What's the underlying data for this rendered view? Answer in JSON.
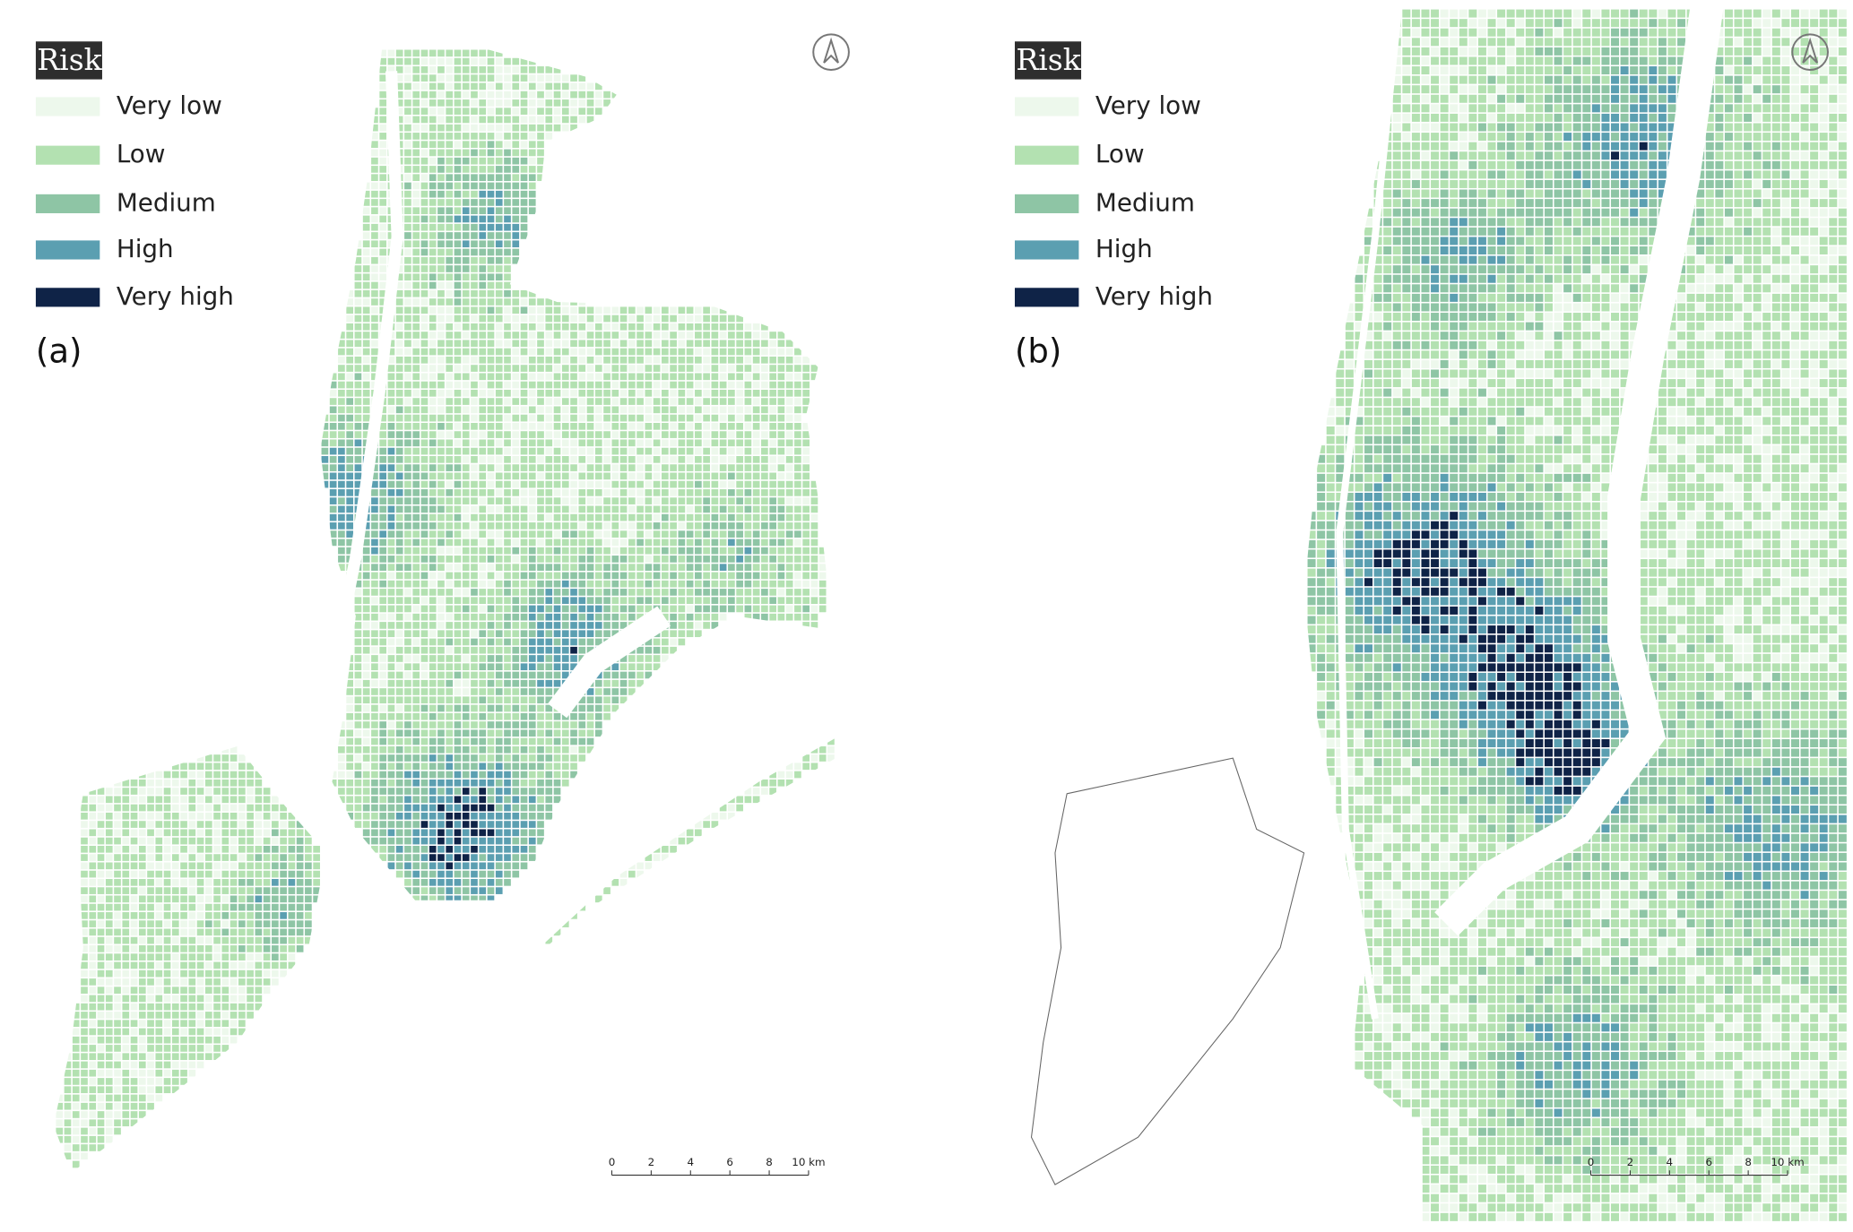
{
  "panels": [
    {
      "label": "(a)",
      "legend": {
        "title": "Risk",
        "items": [
          {
            "label": "Very low",
            "color": "#edf8ec"
          },
          {
            "label": "Low",
            "color": "#b3e1b1"
          },
          {
            "label": "Medium",
            "color": "#8ec5a5"
          },
          {
            "label": "High",
            "color": "#5b9fb1"
          },
          {
            "label": "Very high",
            "color": "#0f2347"
          }
        ]
      },
      "scale_bar": {
        "ticks": [
          "0",
          "2",
          "4",
          "6",
          "8",
          "10 km"
        ]
      }
    },
    {
      "label": "(b)",
      "legend": {
        "title": "Risk",
        "items": [
          {
            "label": "Very low",
            "color": "#edf8ec"
          },
          {
            "label": "Low",
            "color": "#b3e1b1"
          },
          {
            "label": "Medium",
            "color": "#8ec5a5"
          },
          {
            "label": "High",
            "color": "#5b9fb1"
          },
          {
            "label": "Very high",
            "color": "#0f2347"
          }
        ]
      },
      "scale_bar": {
        "ticks": [
          "0",
          "2",
          "4",
          "6",
          "8",
          "10 km"
        ]
      }
    }
  ]
}
